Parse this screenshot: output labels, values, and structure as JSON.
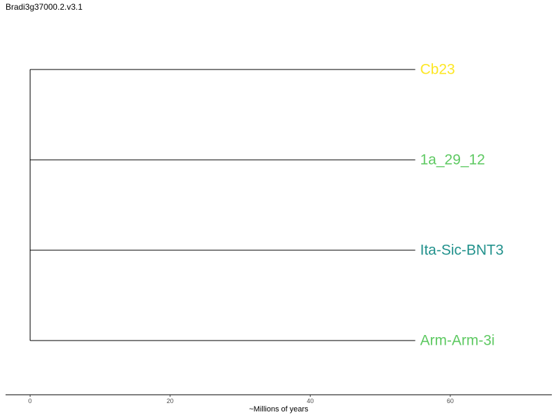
{
  "header": {
    "title": "Bradi3g37000.2.v3.1"
  },
  "tree": {
    "tips": [
      {
        "name": "Cb23",
        "color": "#FDE725"
      },
      {
        "name": "1a_29_12",
        "color": "#5EC962"
      },
      {
        "name": "Ita-Sic-BNT3",
        "color": "#21918C"
      },
      {
        "name": "Arm-Arm-3i",
        "color": "#5EC962"
      }
    ],
    "branch_length": 55
  },
  "axis": {
    "title": "~Millions of years",
    "ticks": [
      "0",
      "20",
      "40",
      "60"
    ],
    "tick_values": [
      0,
      20,
      40,
      60
    ],
    "range": [
      -3.5,
      74.5
    ]
  }
}
